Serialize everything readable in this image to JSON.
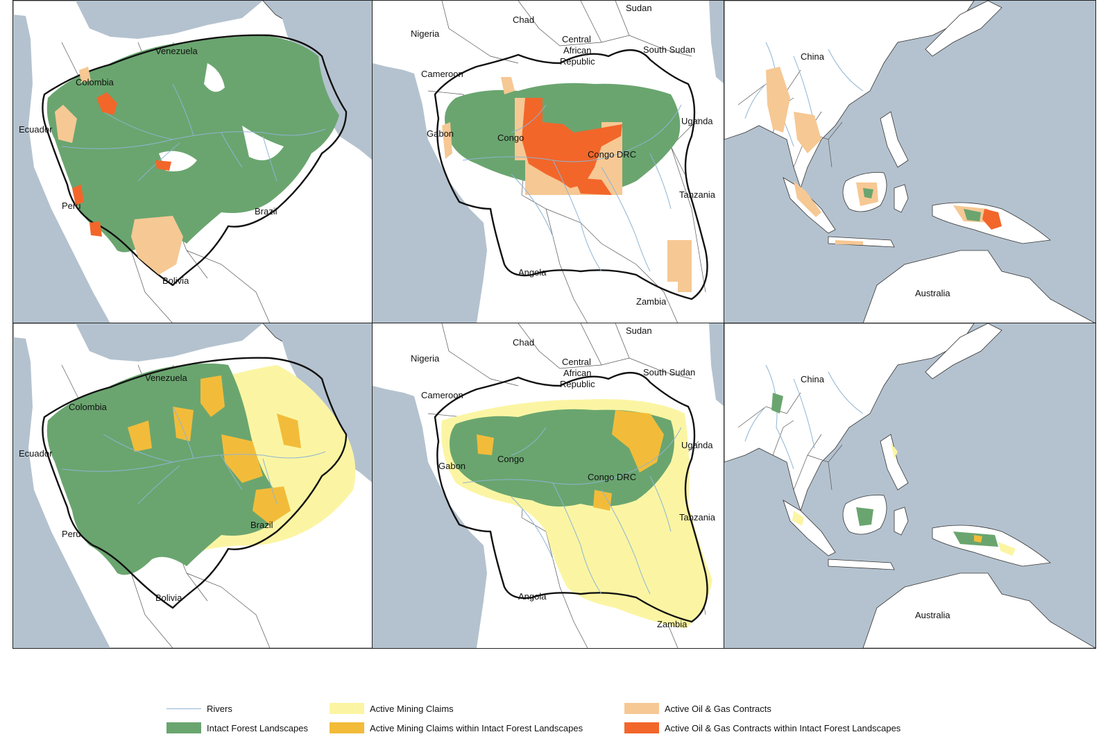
{
  "panels": [
    {
      "id": "amazon-oil",
      "labels": [
        "Venezuela",
        "Colombia",
        "Ecuador",
        "Peru",
        "Bolivia",
        "Brazil"
      ]
    },
    {
      "id": "congo-oil",
      "labels": [
        "Chad",
        "Sudan",
        "Nigeria",
        "Central",
        "African",
        "Republic",
        "South Sudan",
        "Cameroon",
        "Gabon",
        "Congo",
        "Uganda",
        "Congo DRC",
        "Tanzania",
        "Angola",
        "Zambia"
      ]
    },
    {
      "id": "asia-oil",
      "labels": [
        "China",
        "Australia"
      ]
    },
    {
      "id": "amazon-mining",
      "labels": [
        "Venezuela",
        "Colombia",
        "Ecuador",
        "Peru",
        "Bolivia",
        "Brazil"
      ]
    },
    {
      "id": "congo-mining",
      "labels": [
        "Chad",
        "Sudan",
        "Nigeria",
        "Central",
        "African",
        "Republic",
        "South Sudan",
        "Cameroon",
        "Gabon",
        "Congo",
        "Uganda",
        "Congo DRC",
        "Tanzania",
        "Angola",
        "Zambia"
      ]
    },
    {
      "id": "asia-mining",
      "labels": [
        "China",
        "Australia"
      ]
    }
  ],
  "legend": [
    {
      "label": "Rivers",
      "color": "#8fb4d3",
      "kind": "line"
    },
    {
      "label": "Active Mining Claims",
      "color": "#fbf5a3",
      "kind": "fill"
    },
    {
      "label": "Active Oil & Gas Contracts",
      "color": "#f6c894",
      "kind": "fill"
    },
    {
      "label": "Intact Forest Landscapes",
      "color": "#6aa56f",
      "kind": "fill"
    },
    {
      "label": "Active Mining Claims within Intact Forest Landscapes",
      "color": "#f2bc3a",
      "kind": "fill"
    },
    {
      "label": "Active Oil & Gas Contracts within Intact Forest Landscapes",
      "color": "#f2662a",
      "kind": "fill"
    }
  ],
  "colors": {
    "ocean": "#b4c2cf",
    "land": "#ffffff",
    "forest": "#6aa56f",
    "rivers": "#8fb4d3"
  }
}
